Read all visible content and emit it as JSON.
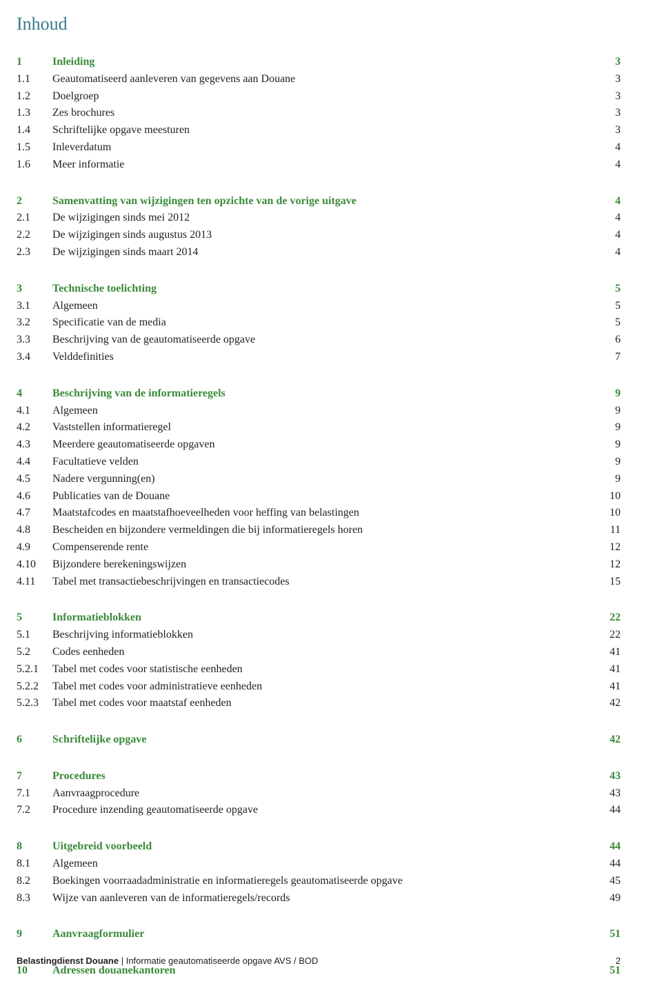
{
  "colors": {
    "accent": "#3a8a3a",
    "text": "#222222",
    "title": "#3a7a8a"
  },
  "title": "Inhoud",
  "footer": {
    "publisher": "Belastingdienst Douane",
    "doc_title": "Informatie geautomatiseerde opgave AVS / BOD",
    "page": "2"
  },
  "sections": [
    {
      "head": {
        "num": "1",
        "label": "Inleiding",
        "page": "3"
      },
      "items": [
        {
          "num": "1.1",
          "label": "Geautomatiseerd aanleveren van gegevens aan Douane",
          "page": "3"
        },
        {
          "num": "1.2",
          "label": "Doelgroep",
          "page": "3"
        },
        {
          "num": "1.3",
          "label": "Zes brochures",
          "page": "3"
        },
        {
          "num": "1.4",
          "label": "Schriftelijke opgave meesturen",
          "page": "3"
        },
        {
          "num": "1.5",
          "label": "Inleverdatum",
          "page": "4"
        },
        {
          "num": "1.6",
          "label": "Meer informatie",
          "page": "4"
        }
      ]
    },
    {
      "head": {
        "num": "2",
        "label": "Samenvatting van wijzigingen ten opzichte van de vorige uitgave",
        "page": "4"
      },
      "items": [
        {
          "num": "2.1",
          "label": "De wijzigingen sinds mei 2012",
          "page": "4"
        },
        {
          "num": "2.2",
          "label": "De wijzigingen sinds augustus 2013",
          "page": "4"
        },
        {
          "num": "2.3",
          "label": "De wijzigingen sinds maart 2014",
          "page": "4"
        }
      ]
    },
    {
      "head": {
        "num": "3",
        "label": "Technische toelichting",
        "page": "5"
      },
      "items": [
        {
          "num": "3.1",
          "label": "Algemeen",
          "page": "5"
        },
        {
          "num": "3.2",
          "label": "Specificatie van de media",
          "page": "5"
        },
        {
          "num": "3.3",
          "label": "Beschrijving van de geautomatiseerde opgave",
          "page": "6"
        },
        {
          "num": "3.4",
          "label": "Velddefinities",
          "page": "7"
        }
      ]
    },
    {
      "head": {
        "num": "4",
        "label": "Beschrijving van de informatieregels",
        "page": "9"
      },
      "items": [
        {
          "num": "4.1",
          "label": "Algemeen",
          "page": "9"
        },
        {
          "num": "4.2",
          "label": "Vaststellen informatieregel",
          "page": "9"
        },
        {
          "num": "4.3",
          "label": "Meerdere geautomatiseerde opgaven",
          "page": "9"
        },
        {
          "num": "4.4",
          "label": "Facultatieve velden",
          "page": "9"
        },
        {
          "num": "4.5",
          "label": "Nadere vergunning(en)",
          "page": "9"
        },
        {
          "num": "4.6",
          "label": "Publicaties van de Douane",
          "page": "10"
        },
        {
          "num": "4.7",
          "label": "Maatstafcodes en maatstafhoeveelheden voor heffing van belastingen",
          "page": "10"
        },
        {
          "num": "4.8",
          "label": "Bescheiden en bijzondere vermeldingen die bij informatieregels horen",
          "page": "11"
        },
        {
          "num": "4.9",
          "label": "Compenserende rente",
          "page": "12"
        },
        {
          "num": "4.10",
          "label": "Bijzondere berekeningswijzen",
          "page": "12"
        },
        {
          "num": "4.11",
          "label": "Tabel met transactiebeschrijvingen en transactiecodes",
          "page": "15"
        }
      ]
    },
    {
      "head": {
        "num": "5",
        "label": "Informatieblokken",
        "page": "22"
      },
      "items": [
        {
          "num": "5.1",
          "label": "Beschrijving informatieblokken",
          "page": "22"
        },
        {
          "num": "5.2",
          "label": "Codes eenheden",
          "page": "41"
        },
        {
          "num": "5.2.1",
          "label": "Tabel met codes voor statistische eenheden",
          "page": "41"
        },
        {
          "num": "5.2.2",
          "label": "Tabel met codes voor administratieve eenheden",
          "page": "41"
        },
        {
          "num": "5.2.3",
          "label": "Tabel met codes voor maatstaf eenheden",
          "page": "42"
        }
      ]
    },
    {
      "head": {
        "num": "6",
        "label": "Schriftelijke opgave",
        "page": "42"
      },
      "items": []
    },
    {
      "head": {
        "num": "7",
        "label": "Procedures",
        "page": "43"
      },
      "items": [
        {
          "num": "7.1",
          "label": "Aanvraagprocedure",
          "page": "43"
        },
        {
          "num": "7.2",
          "label": "Procedure inzending geautomatiseerde opgave",
          "page": "44"
        }
      ]
    },
    {
      "head": {
        "num": "8",
        "label": "Uitgebreid voorbeeld",
        "page": "44"
      },
      "items": [
        {
          "num": "8.1",
          "label": "Algemeen",
          "page": "44"
        },
        {
          "num": "8.2",
          "label": "Boekingen voorraadadministratie en informatieregels geautomatiseerde opgave",
          "page": "45"
        },
        {
          "num": "8.3",
          "label": "Wijze van aanleveren van de informatieregels/records",
          "page": "49"
        }
      ]
    },
    {
      "head": {
        "num": "9",
        "label": "Aanvraagformulier",
        "page": "51"
      },
      "items": []
    },
    {
      "head": {
        "num": "10",
        "label": "Adressen douanekantoren",
        "page": "51"
      },
      "items": []
    }
  ]
}
